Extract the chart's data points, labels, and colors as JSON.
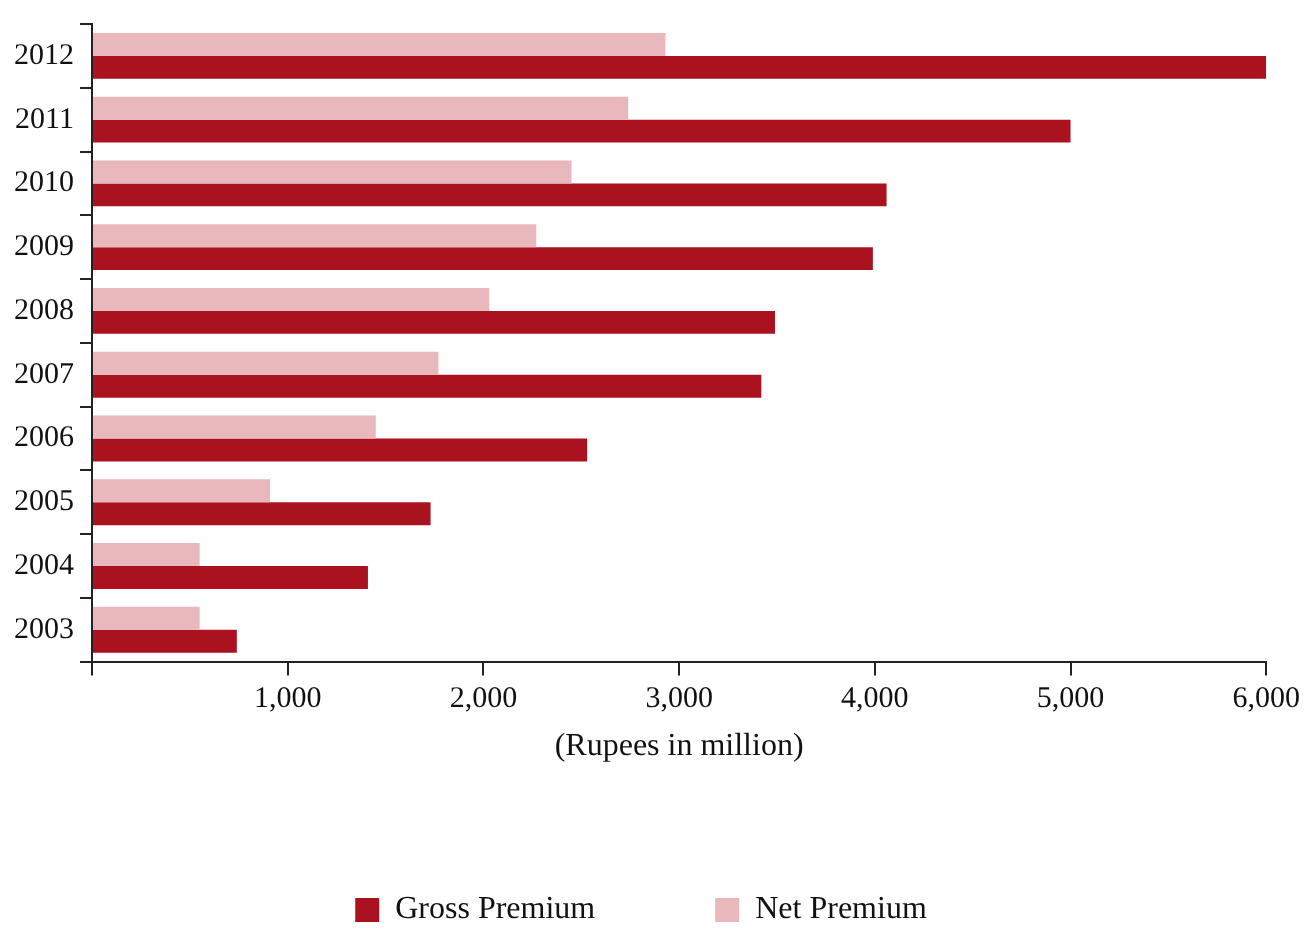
{
  "chart_data": {
    "type": "bar",
    "orientation": "horizontal",
    "xlabel": "(Rupees in million)",
    "categories": [
      "2012",
      "2011",
      "2010",
      "2009",
      "2008",
      "2007",
      "2006",
      "2005",
      "2004",
      "2003"
    ],
    "series": [
      {
        "name": "Gross Premium",
        "color": "#ab1220",
        "values": [
          6000,
          5000,
          4060,
          3990,
          3490,
          3420,
          2530,
          1730,
          1410,
          740
        ]
      },
      {
        "name": "Net Premium",
        "color": "#e8b8bc",
        "values": [
          2930,
          2740,
          2450,
          2270,
          2030,
          1770,
          1450,
          910,
          550,
          550
        ]
      }
    ],
    "xlim": [
      0,
      6000
    ],
    "xticks": [
      {
        "value": 0,
        "label": null
      },
      {
        "value": 1000,
        "label": "1,000"
      },
      {
        "value": 2000,
        "label": "2,000"
      },
      {
        "value": 3000,
        "label": "3,000"
      },
      {
        "value": 4000,
        "label": "4,000"
      },
      {
        "value": 5000,
        "label": "5,000"
      },
      {
        "value": 6000,
        "label": "6,000"
      }
    ],
    "grid": false,
    "legend": "bottom"
  }
}
